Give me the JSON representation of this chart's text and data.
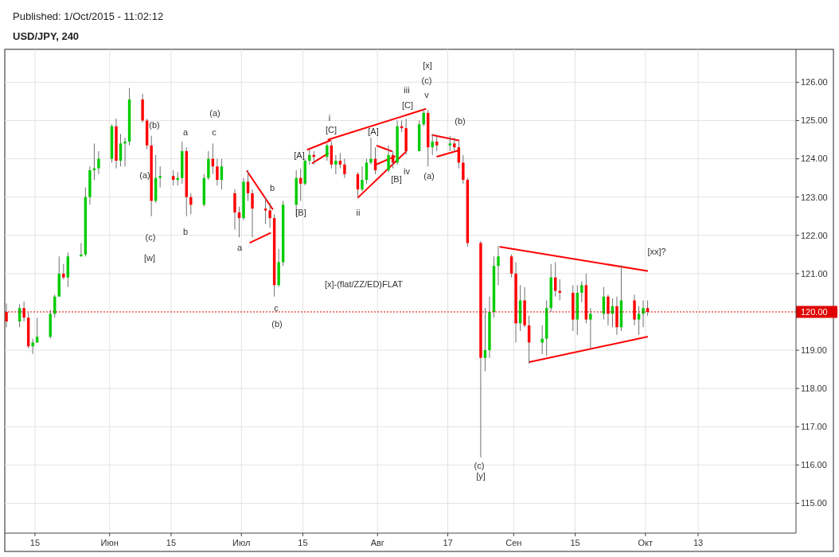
{
  "chart_data": {
    "type": "candlestick",
    "title": "USD/JPY, 240",
    "subtitle": "Published: 1/Oct/2015 - 11:02:12",
    "x": [
      "2015-05-08T12:00",
      "2015-05-11T12:00",
      "2015-05-12T12:00",
      "2015-05-13T12:00",
      "2015-05-14T12:00",
      "2015-05-15T12:00",
      "2015-05-18T12:00",
      "2015-05-19T12:00",
      "2015-05-20T12:00",
      "2015-05-21T12:00",
      "2015-05-22T12:00",
      "2015-05-25T12:00",
      "2015-05-26T12:00",
      "2015-05-27T12:00",
      "2015-05-28T12:00",
      "2015-05-29T12:00",
      "2015-06-01T12:00",
      "2015-06-02T12:00",
      "2015-06-03T12:00",
      "2015-06-04T12:00",
      "2015-06-05T12:00",
      "2015-06-08T12:00",
      "2015-06-09T12:00",
      "2015-06-10T12:00",
      "2015-06-11T12:00",
      "2015-06-12T12:00",
      "2015-06-15T12:00",
      "2015-06-16T12:00",
      "2015-06-17T12:00",
      "2015-06-18T12:00",
      "2015-06-19T12:00",
      "2015-06-22T12:00",
      "2015-06-23T12:00",
      "2015-06-24T12:00",
      "2015-06-25T12:00",
      "2015-06-26T12:00",
      "2015-06-29T12:00",
      "2015-06-30T12:00",
      "2015-07-01T12:00",
      "2015-07-02T12:00",
      "2015-07-03T12:00",
      "2015-07-06T12:00",
      "2015-07-07T12:00",
      "2015-07-08T12:00",
      "2015-07-09T12:00",
      "2015-07-10T12:00",
      "2015-07-13T12:00",
      "2015-07-14T12:00",
      "2015-07-15T12:00",
      "2015-07-16T12:00",
      "2015-07-17T12:00",
      "2015-07-20T12:00",
      "2015-07-21T12:00",
      "2015-07-22T12:00",
      "2015-07-23T12:00",
      "2015-07-24T12:00",
      "2015-07-27T12:00",
      "2015-07-28T12:00",
      "2015-07-29T12:00",
      "2015-07-30T12:00",
      "2015-07-31T12:00",
      "2015-08-03T12:00",
      "2015-08-04T12:00",
      "2015-08-05T12:00",
      "2015-08-06T12:00",
      "2015-08-07T12:00",
      "2015-08-10T12:00",
      "2015-08-11T12:00",
      "2015-08-12T12:00",
      "2015-08-13T12:00",
      "2015-08-14T12:00",
      "2015-08-17T12:00",
      "2015-08-18T12:00",
      "2015-08-19T12:00",
      "2015-08-20T12:00",
      "2015-08-21T12:00",
      "2015-08-24T12:00",
      "2015-08-25T12:00",
      "2015-08-26T12:00",
      "2015-08-27T12:00",
      "2015-08-28T12:00",
      "2015-08-31T12:00",
      "2015-09-01T12:00",
      "2015-09-02T12:00",
      "2015-09-03T12:00",
      "2015-09-04T12:00",
      "2015-09-07T12:00",
      "2015-09-08T12:00",
      "2015-09-09T12:00",
      "2015-09-10T12:00",
      "2015-09-11T12:00",
      "2015-09-14T12:00",
      "2015-09-15T12:00",
      "2015-09-16T12:00",
      "2015-09-17T12:00",
      "2015-09-18T12:00",
      "2015-09-21T12:00",
      "2015-09-22T12:00",
      "2015-09-23T12:00",
      "2015-09-24T12:00",
      "2015-09-25T12:00",
      "2015-09-28T12:00",
      "2015-09-29T12:00",
      "2015-09-30T12:00",
      "2015-10-01T12:00"
    ],
    "ohlc": [
      [
        120.0,
        120.22,
        119.6,
        119.75
      ],
      [
        119.75,
        120.2,
        119.6,
        120.1
      ],
      [
        120.1,
        120.27,
        119.75,
        119.85
      ],
      [
        119.85,
        119.98,
        119.05,
        119.1
      ],
      [
        119.1,
        119.3,
        118.9,
        119.2
      ],
      [
        119.2,
        119.85,
        119.2,
        119.35
      ],
      [
        119.35,
        120.05,
        119.3,
        119.95
      ],
      [
        119.95,
        120.45,
        119.85,
        120.4
      ],
      [
        120.4,
        121.45,
        120.4,
        121.0
      ],
      [
        121.0,
        121.25,
        120.85,
        120.9
      ],
      [
        120.9,
        121.55,
        120.65,
        121.45
      ],
      [
        121.45,
        121.8,
        121.45,
        121.5
      ],
      [
        121.5,
        123.25,
        121.45,
        123.0
      ],
      [
        123.0,
        123.8,
        122.8,
        123.7
      ],
      [
        123.7,
        124.4,
        123.45,
        123.75
      ],
      [
        123.75,
        124.2,
        123.6,
        124.0
      ],
      [
        124.0,
        124.9,
        123.9,
        124.85
      ],
      [
        124.85,
        125.05,
        123.75,
        123.95
      ],
      [
        123.95,
        124.65,
        123.8,
        124.4
      ],
      [
        124.4,
        124.55,
        123.8,
        124.45
      ],
      [
        124.45,
        125.85,
        124.35,
        125.55
      ],
      [
        125.55,
        125.7,
        124.95,
        125.0
      ],
      [
        125.0,
        125.05,
        124.25,
        124.35
      ],
      [
        124.35,
        124.6,
        122.5,
        122.9
      ],
      [
        122.9,
        124.1,
        122.85,
        123.5
      ],
      [
        123.5,
        123.8,
        123.25,
        123.55
      ],
      [
        123.55,
        123.7,
        123.3,
        123.45
      ],
      [
        123.45,
        123.65,
        123.3,
        123.5
      ],
      [
        123.5,
        124.45,
        123.35,
        124.2
      ],
      [
        124.2,
        124.3,
        122.5,
        123.0
      ],
      [
        123.0,
        123.1,
        122.55,
        122.8
      ],
      [
        122.8,
        123.6,
        122.75,
        123.5
      ],
      [
        123.5,
        124.2,
        123.45,
        124.0
      ],
      [
        124.0,
        124.4,
        123.6,
        123.8
      ],
      [
        123.8,
        124.0,
        123.3,
        123.45
      ],
      [
        123.45,
        124.0,
        123.2,
        123.8
      ],
      [
        123.1,
        123.2,
        122.15,
        122.6
      ],
      [
        122.6,
        122.75,
        121.95,
        122.45
      ],
      [
        122.45,
        123.5,
        122.4,
        123.4
      ],
      [
        123.4,
        123.7,
        122.9,
        123.1
      ],
      [
        123.1,
        123.2,
        121.95,
        122.7
      ],
      [
        122.7,
        123.0,
        122.3,
        122.65
      ],
      [
        122.65,
        122.85,
        122.2,
        122.45
      ],
      [
        122.45,
        122.55,
        120.4,
        120.7
      ],
      [
        120.7,
        121.65,
        120.65,
        121.3
      ],
      [
        121.3,
        122.9,
        121.2,
        122.8
      ],
      [
        122.8,
        123.7,
        122.5,
        123.5
      ],
      [
        123.5,
        123.75,
        122.9,
        123.35
      ],
      [
        123.35,
        124.0,
        123.3,
        123.95
      ],
      [
        123.95,
        124.25,
        123.85,
        124.1
      ],
      [
        124.1,
        124.2,
        123.85,
        124.05
      ],
      [
        124.05,
        124.4,
        123.95,
        124.35
      ],
      [
        124.35,
        124.45,
        123.75,
        123.85
      ],
      [
        123.85,
        124.1,
        123.6,
        123.95
      ],
      [
        123.95,
        124.15,
        123.75,
        123.85
      ],
      [
        123.85,
        124.0,
        123.5,
        123.6
      ],
      [
        123.6,
        123.65,
        123.0,
        123.2
      ],
      [
        123.2,
        123.8,
        123.15,
        123.45
      ],
      [
        123.45,
        124.0,
        123.35,
        123.9
      ],
      [
        123.9,
        124.55,
        123.85,
        124.0
      ],
      [
        124.0,
        124.3,
        123.6,
        123.7
      ],
      [
        123.7,
        124.35,
        123.65,
        124.1
      ],
      [
        124.1,
        124.2,
        123.75,
        123.9
      ],
      [
        123.9,
        125.0,
        123.85,
        124.85
      ],
      [
        124.85,
        125.0,
        124.7,
        124.8
      ],
      [
        124.8,
        125.05,
        124.1,
        124.2
      ],
      [
        124.2,
        125.0,
        124.2,
        124.9
      ],
      [
        124.9,
        125.3,
        124.85,
        125.2
      ],
      [
        125.2,
        125.28,
        123.8,
        124.3
      ],
      [
        124.3,
        124.65,
        124.1,
        124.45
      ],
      [
        124.45,
        124.6,
        124.2,
        124.35
      ],
      [
        124.35,
        124.6,
        124.2,
        124.4
      ],
      [
        124.4,
        124.55,
        124.2,
        124.3
      ],
      [
        124.3,
        124.45,
        123.75,
        123.9
      ],
      [
        123.9,
        124.1,
        123.35,
        123.45
      ],
      [
        123.45,
        123.5,
        121.7,
        121.8
      ],
      [
        121.8,
        121.85,
        116.2,
        118.8
      ],
      [
        118.8,
        120.1,
        118.45,
        119.0
      ],
      [
        119.0,
        120.4,
        118.8,
        120.0
      ],
      [
        120.0,
        121.45,
        119.85,
        121.2
      ],
      [
        121.2,
        121.72,
        120.7,
        121.45
      ],
      [
        121.45,
        121.5,
        120.9,
        121.0
      ],
      [
        121.0,
        121.3,
        119.2,
        119.7
      ],
      [
        119.7,
        120.7,
        119.5,
        120.3
      ],
      [
        120.3,
        120.65,
        119.6,
        119.65
      ],
      [
        119.65,
        119.9,
        118.65,
        119.2
      ],
      [
        119.2,
        119.65,
        118.9,
        119.3
      ],
      [
        119.3,
        120.3,
        118.85,
        120.1
      ],
      [
        120.1,
        121.25,
        120.0,
        120.9
      ],
      [
        120.9,
        121.3,
        120.4,
        120.55
      ],
      [
        120.55,
        120.85,
        120.3,
        120.5
      ],
      [
        120.5,
        120.7,
        119.5,
        119.8
      ],
      [
        119.8,
        120.7,
        119.4,
        120.5
      ],
      [
        120.5,
        120.8,
        120.25,
        120.7
      ],
      [
        120.7,
        121.0,
        119.7,
        119.8
      ],
      [
        119.8,
        120.1,
        119.05,
        119.95
      ],
      [
        119.95,
        120.65,
        119.8,
        120.4
      ],
      [
        120.4,
        120.45,
        119.65,
        119.95
      ],
      [
        119.95,
        120.35,
        119.6,
        120.15
      ],
      [
        120.15,
        120.4,
        119.4,
        119.6
      ],
      [
        119.6,
        121.22,
        119.5,
        120.3
      ],
      [
        120.3,
        120.45,
        119.65,
        119.8
      ],
      [
        119.8,
        120.15,
        119.4,
        119.95
      ],
      [
        119.95,
        120.3,
        119.6,
        120.1
      ],
      [
        120.1,
        120.3,
        119.9,
        120.0
      ]
    ],
    "colors": [
      "#ff0000",
      "#00cc00",
      "#ff0000",
      "#ff0000",
      "#00cc00",
      "#00cc00",
      "#00cc00",
      "#00cc00",
      "#00cc00",
      "#ff0000",
      "#00cc00",
      "#00cc00",
      "#00cc00",
      "#00cc00",
      "#00cc00",
      "#00cc00",
      "#00cc00",
      "#ff0000",
      "#00cc00",
      "#00cc00",
      "#00cc00",
      "#ff0000",
      "#ff0000",
      "#ff0000",
      "#00cc00",
      "#00cc00",
      "#ff0000",
      "#00cc00",
      "#00cc00",
      "#ff0000",
      "#ff0000",
      "#00cc00",
      "#00cc00",
      "#ff0000",
      "#ff0000",
      "#00cc00",
      "#ff0000",
      "#ff0000",
      "#00cc00",
      "#ff0000",
      "#ff0000",
      "#ff0000",
      "#ff0000",
      "#ff0000",
      "#00cc00",
      "#00cc00",
      "#00cc00",
      "#ff0000",
      "#00cc00",
      "#00cc00",
      "#ff0000",
      "#00cc00",
      "#ff0000",
      "#00cc00",
      "#ff0000",
      "#ff0000",
      "#ff0000",
      "#00cc00",
      "#00cc00",
      "#00cc00",
      "#ff0000",
      "#00cc00",
      "#ff0000",
      "#00cc00",
      "#ff0000",
      "#ff0000",
      "#00cc00",
      "#00cc00",
      "#ff0000",
      "#00cc00",
      "#ff0000",
      "#00cc00",
      "#ff0000",
      "#ff0000",
      "#ff0000",
      "#ff0000",
      "#ff0000",
      "#00cc00",
      "#00cc00",
      "#00cc00",
      "#00cc00",
      "#ff0000",
      "#ff0000",
      "#00cc00",
      "#ff0000",
      "#ff0000",
      "#00cc00",
      "#00cc00",
      "#00cc00",
      "#ff0000",
      "#ff0000",
      "#ff0000",
      "#00cc00",
      "#00cc00",
      "#ff0000",
      "#00cc00",
      "#00cc00",
      "#ff0000",
      "#00cc00",
      "#ff0000",
      "#00cc00",
      "#ff0000",
      "#00cc00",
      "#00cc00",
      "#ff0000"
    ],
    "series": [
      {
        "type": "line",
        "color": "#ff0000",
        "x": [
          "2015-07-02T07:00",
          "2015-07-08T02:00"
        ],
        "values": [
          123.68,
          122.69
        ]
      },
      {
        "type": "line",
        "color": "#ff0000",
        "x": [
          "2015-07-03T00:00",
          "2015-07-07T14:00"
        ],
        "values": [
          121.81,
          122.06
        ]
      },
      {
        "type": "line",
        "color": "#ff0000",
        "x": [
          "2015-07-16T02:00",
          "2015-07-21T07:00"
        ],
        "values": [
          124.24,
          124.48
        ]
      },
      {
        "type": "line",
        "color": "#ff0000",
        "x": [
          "2015-07-17T05:00",
          "2015-07-20T17:00"
        ],
        "values": [
          123.89,
          124.14
        ]
      },
      {
        "type": "line",
        "color": "#ff0000",
        "x": [
          "2015-07-20T19:00",
          "2015-08-11T22:00"
        ],
        "values": [
          124.5,
          125.3
        ]
      },
      {
        "type": "line",
        "color": "#ff0000",
        "x": [
          "2015-07-27T14:00",
          "2015-08-07T12:00"
        ],
        "values": [
          122.99,
          124.19
        ]
      },
      {
        "type": "line",
        "color": "#ff0000",
        "x": [
          "2015-07-31T17:00",
          "2015-08-04T22:00"
        ],
        "values": [
          123.85,
          124.06
        ]
      },
      {
        "type": "line",
        "color": "#ff0000",
        "x": [
          "2015-07-31T22:00",
          "2015-08-04T05:00"
        ],
        "values": [
          124.34,
          124.2
        ]
      },
      {
        "type": "line",
        "color": "#ff0000",
        "x": [
          "2015-08-13T12:00",
          "2015-08-19T12:00"
        ],
        "values": [
          124.62,
          124.48
        ]
      },
      {
        "type": "line",
        "color": "#ff0000",
        "x": [
          "2015-08-14T14:00",
          "2015-08-19T12:00"
        ],
        "values": [
          124.06,
          124.22
        ]
      },
      {
        "type": "line",
        "color": "#ff0000",
        "x": [
          "2015-08-28T22:00",
          "2015-10-01T10:00"
        ],
        "values": [
          121.7,
          121.07
        ]
      },
      {
        "type": "line",
        "color": "#ff0000",
        "x": [
          "2015-09-04T14:00",
          "2015-10-01T10:00"
        ],
        "values": [
          118.69,
          119.35
        ]
      }
    ],
    "annotations": [
      "(b)",
      "(a)",
      "(c)",
      "[w]",
      "a",
      "b",
      "(a)",
      "c",
      "a",
      "b",
      "[B]",
      "c",
      "(b)",
      "[A]",
      "i",
      "[C]",
      "ii",
      "[A]",
      "[B]",
      "iv",
      "[C]",
      "iii",
      "[x]",
      "(c)",
      "v",
      "(a)",
      "(b)",
      "[x]-(flat/ZZ/ED)FLAT",
      "(c)",
      "[y]",
      "[xx]?"
    ],
    "ref_lines": [
      {
        "axis": "y",
        "value": 120.0,
        "label": "120.00",
        "color": "#e00000",
        "line_style": "dotted"
      }
    ],
    "xlim": [
      "2015-05-08T03:00",
      "2015-11-04T07:00"
    ],
    "ylim": [
      114.22,
      126.86
    ],
    "xticks": [
      {
        "value": "2015-05-15",
        "label": "15"
      },
      {
        "value": "2015-06-01",
        "label": "Июн"
      },
      {
        "value": "2015-06-15",
        "label": "15"
      },
      {
        "value": "2015-07-01",
        "label": "Июл"
      },
      {
        "value": "2015-07-15",
        "label": "15"
      },
      {
        "value": "2015-08-01",
        "label": "Авг"
      },
      {
        "value": "2015-08-17",
        "label": "17"
      },
      {
        "value": "2015-09-01",
        "label": "Сен"
      },
      {
        "value": "2015-09-15",
        "label": "15"
      },
      {
        "value": "2015-10-01",
        "label": "Окт"
      },
      {
        "value": "2015-10-13",
        "label": "13"
      }
    ],
    "yticks": [
      {
        "value": 115,
        "label": "115.00"
      },
      {
        "value": 116,
        "label": "116.00"
      },
      {
        "value": 117,
        "label": "117.00"
      },
      {
        "value": 118,
        "label": "118.00"
      },
      {
        "value": 119,
        "label": "119.00"
      },
      {
        "value": 121,
        "label": "121.00"
      },
      {
        "value": 122,
        "label": "122.00"
      },
      {
        "value": 123,
        "label": "123.00"
      },
      {
        "value": 124,
        "label": "124.00"
      },
      {
        "value": 125,
        "label": "125.00"
      },
      {
        "value": 126,
        "label": "126.00"
      }
    ],
    "grid": true
  }
}
